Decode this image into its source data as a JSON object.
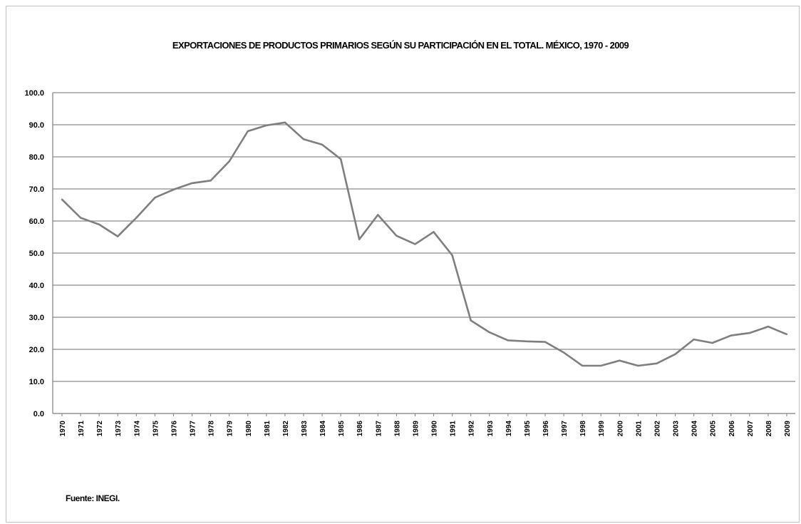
{
  "source_note": "Fuente: INEGI.",
  "chart_data": {
    "type": "line",
    "title": "EXPORTACIONES DE PRODUCTOS PRIMARIOS SEGÚN SU PARTICIPACIÓN EN EL TOTAL. MÉXICO, 1970 - 2009",
    "xlabel": "",
    "ylabel": "",
    "ylim": [
      0,
      100
    ],
    "y_ticks": [
      "0.0",
      "10.0",
      "20.0",
      "30.0",
      "40.0",
      "50.0",
      "60.0",
      "70.0",
      "80.0",
      "90.0",
      "100.0"
    ],
    "grid": true,
    "legend": "none",
    "line_color": "#7f7f7f",
    "categories": [
      "1970",
      "1971",
      "1972",
      "1973",
      "1974",
      "1975",
      "1976",
      "1977",
      "1978",
      "1979",
      "1980",
      "1981",
      "1982",
      "1983",
      "1984",
      "1985",
      "1986",
      "1987",
      "1988",
      "1989",
      "1990",
      "1991",
      "1992",
      "1993",
      "1994",
      "1995",
      "1996",
      "1997",
      "1998",
      "1999",
      "2000",
      "2001",
      "2002",
      "2003",
      "2004",
      "2005",
      "2006",
      "2007",
      "2008",
      "2009"
    ],
    "values": [
      66.7,
      61.0,
      58.9,
      55.2,
      61.0,
      67.3,
      69.8,
      71.8,
      72.6,
      78.6,
      88.0,
      89.8,
      90.7,
      85.5,
      83.8,
      79.3,
      54.3,
      61.9,
      55.4,
      52.8,
      56.6,
      49.3,
      29.0,
      25.3,
      22.8,
      22.5,
      22.3,
      19.0,
      14.9,
      14.9,
      16.5,
      14.9,
      15.6,
      18.5,
      23.1,
      22.0,
      24.3,
      25.1,
      27.1,
      24.7
    ]
  }
}
